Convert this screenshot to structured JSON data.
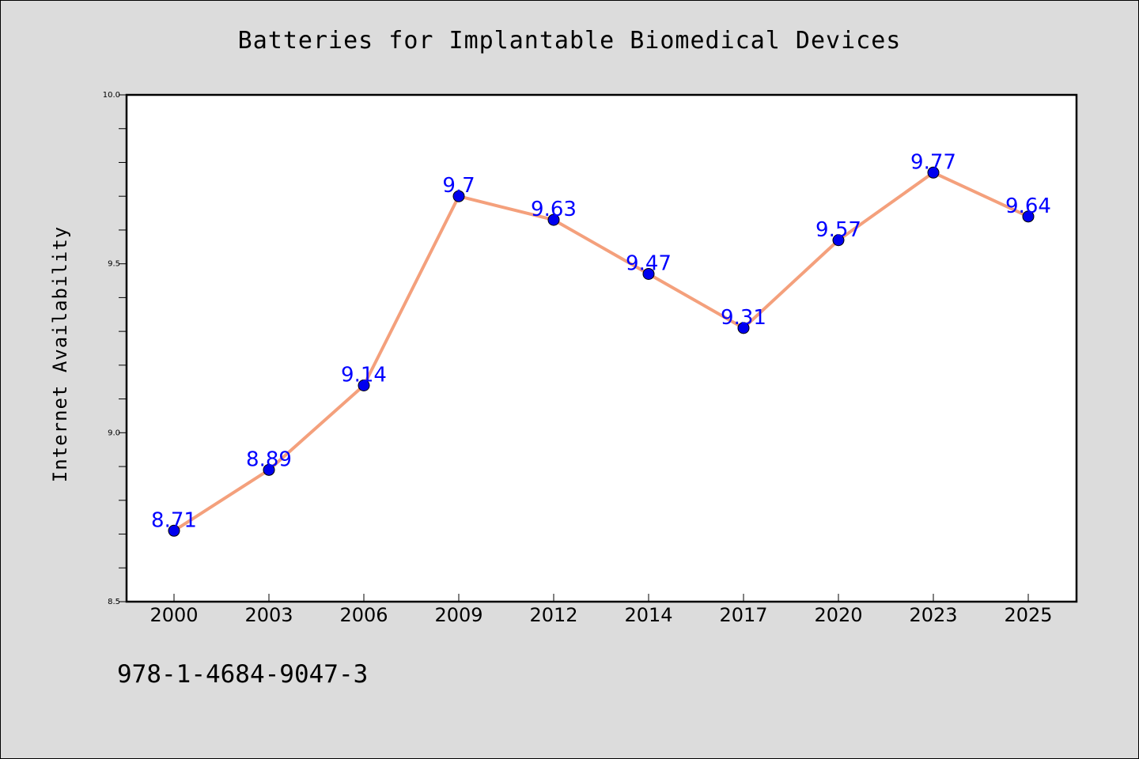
{
  "chart_data": {
    "type": "line",
    "title": "Batteries for Implantable Biomedical Devices",
    "ylabel": "Internet Availability",
    "xlabel": "",
    "categories": [
      "2000",
      "2003",
      "2006",
      "2009",
      "2012",
      "2014",
      "2017",
      "2020",
      "2023",
      "2025"
    ],
    "series": [
      {
        "values": [
          8.71,
          8.89,
          9.14,
          9.7,
          9.63,
          9.47,
          9.31,
          9.57,
          9.77,
          9.64
        ],
        "line_color": "#f4a07c",
        "marker_color": "#0000ee"
      }
    ],
    "data_labels": [
      "8.71",
      "8.89",
      "9.14",
      "9.7",
      "9.63",
      "9.47",
      "9.31",
      "9.57",
      "9.77",
      "9.64"
    ],
    "ylim": [
      8.5,
      10.0
    ],
    "yticks": [
      "8.5",
      "9.0",
      "9.5",
      "10.0"
    ],
    "grid": false,
    "label_color": "#0000ff"
  },
  "footer": {
    "isbn": "978-1-4684-9047-3"
  }
}
